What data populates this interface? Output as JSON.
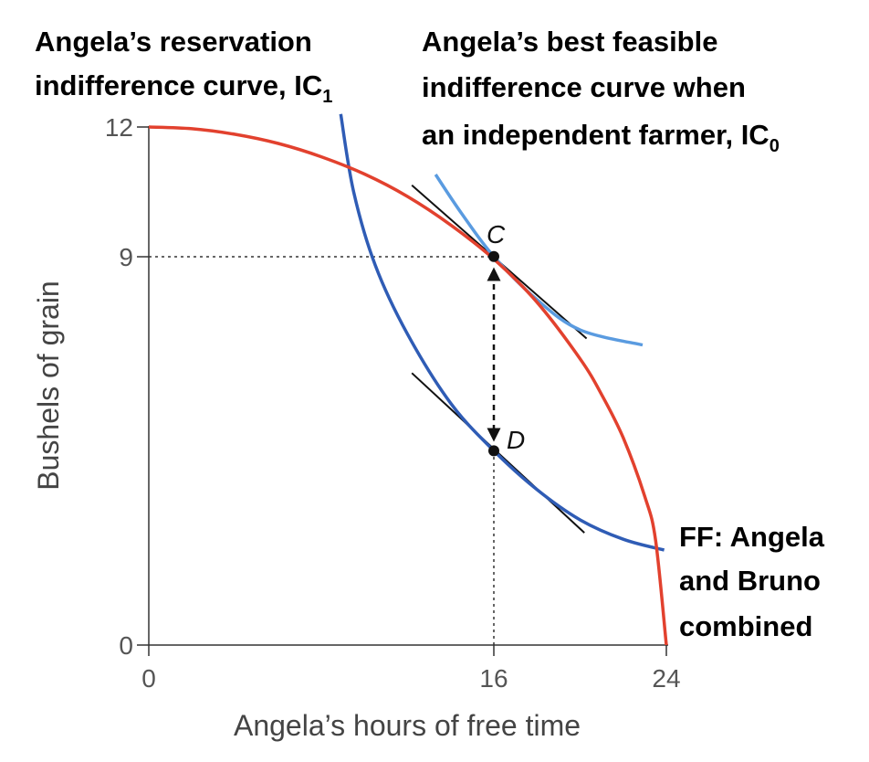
{
  "chart_data": {
    "type": "line",
    "xlabel": "Angela’s hours of free time",
    "ylabel": "Bushels of grain",
    "xlim": [
      0,
      24
    ],
    "ylim": [
      0,
      12
    ],
    "x_ticks": [
      "0",
      "16",
      "24"
    ],
    "y_ticks": [
      "0",
      "9",
      "12"
    ],
    "grid": false,
    "colors": {
      "ff": "#e2412e",
      "ic1": "#2f5cb5",
      "ic0": "#5a9be0",
      "tangent": "#111111",
      "guide": "#333333"
    },
    "annotations": {
      "ic1": {
        "line1": "Angela’s reservation",
        "line2": "indifference curve, IC",
        "sub": "1"
      },
      "ic0": {
        "line1": "Angela’s best feasible",
        "line2": "indifference curve when",
        "line3": "an independent farmer, IC",
        "sub": "0"
      },
      "ff": {
        "line1": "FF: Angela",
        "line2": "and Bruno",
        "line3": "combined"
      }
    },
    "points": [
      {
        "label": "C",
        "x": 16,
        "y": 9
      },
      {
        "label": "D",
        "x": 16,
        "y": 4.5
      }
    ],
    "series": [
      {
        "id": "ff",
        "values": [
          [
            0,
            12
          ],
          [
            2,
            11.96
          ],
          [
            4,
            11.83
          ],
          [
            6,
            11.62
          ],
          [
            8,
            11.31
          ],
          [
            10,
            10.91
          ],
          [
            12,
            10.39
          ],
          [
            14,
            9.73
          ],
          [
            16,
            8.94
          ],
          [
            18,
            7.94
          ],
          [
            20,
            6.63
          ],
          [
            21,
            5.8
          ],
          [
            22,
            4.8
          ],
          [
            23,
            3.44
          ],
          [
            23.5,
            2.43
          ],
          [
            24,
            0
          ]
        ]
      },
      {
        "id": "ic1",
        "values": [
          [
            8.9,
            12.3
          ],
          [
            9.5,
            10.5
          ],
          [
            10.5,
            8.8
          ],
          [
            12,
            7.2
          ],
          [
            14,
            5.6
          ],
          [
            16,
            4.5
          ],
          [
            18,
            3.6
          ],
          [
            20,
            2.9
          ],
          [
            22,
            2.45
          ],
          [
            23.9,
            2.2
          ]
        ]
      },
      {
        "id": "ic0",
        "values": [
          [
            13.3,
            10.9
          ],
          [
            14.5,
            10.0
          ],
          [
            16,
            9.0
          ],
          [
            18,
            8.0
          ],
          [
            20,
            7.3
          ],
          [
            22.9,
            6.95
          ]
        ]
      },
      {
        "id": "tangent_c",
        "values": [
          [
            12.2,
            10.65
          ],
          [
            20.3,
            7.1
          ]
        ]
      },
      {
        "id": "tangent_d",
        "values": [
          [
            12.2,
            6.3
          ],
          [
            20.2,
            2.6
          ]
        ]
      }
    ]
  }
}
